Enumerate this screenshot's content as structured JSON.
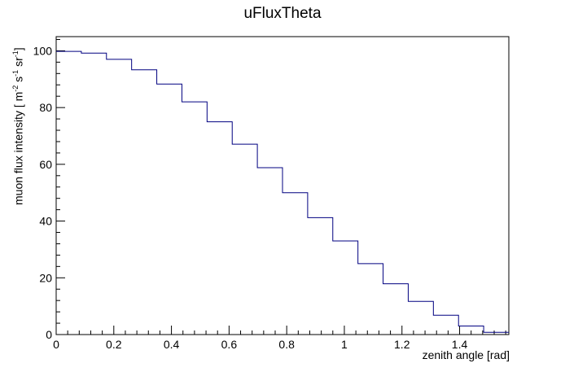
{
  "chart_data": {
    "type": "bar",
    "style": "step-histogram",
    "title": "uFluxTheta",
    "xlabel": "zenith angle [rad]",
    "ylabel": {
      "prefix": "muon flux intensity [ m",
      "sup1": "-2",
      "mid1": " s",
      "sup2": "-1",
      "mid2": " sr",
      "sup3": "-1",
      "suffix": "]"
    },
    "bin_edges": [
      0,
      0.0873,
      0.1745,
      0.2618,
      0.3491,
      0.4363,
      0.5236,
      0.6109,
      0.6981,
      0.7854,
      0.8727,
      0.9599,
      1.0472,
      1.1345,
      1.2217,
      1.309,
      1.3963,
      1.4835,
      1.5708
    ],
    "values": [
      99.8,
      99.2,
      97.0,
      93.3,
      88.3,
      82.0,
      75.0,
      67.1,
      58.8,
      50.0,
      41.2,
      33.0,
      25.0,
      17.9,
      11.7,
      6.8,
      3.0,
      0.8
    ],
    "xlim": [
      0,
      1.5708
    ],
    "ylim": [
      0,
      105
    ],
    "xticks": [
      "0",
      "0.2",
      "0.4",
      "0.6",
      "0.8",
      "1",
      "1.2",
      "1.4"
    ],
    "xtick_values": [
      0,
      0.2,
      0.4,
      0.6,
      0.8,
      1.0,
      1.2,
      1.4
    ],
    "yticks": [
      "0",
      "20",
      "40",
      "60",
      "80",
      "100"
    ],
    "ytick_values": [
      0,
      20,
      40,
      60,
      80,
      100
    ],
    "line_color": "#000080",
    "grid": false,
    "legend": "none"
  }
}
